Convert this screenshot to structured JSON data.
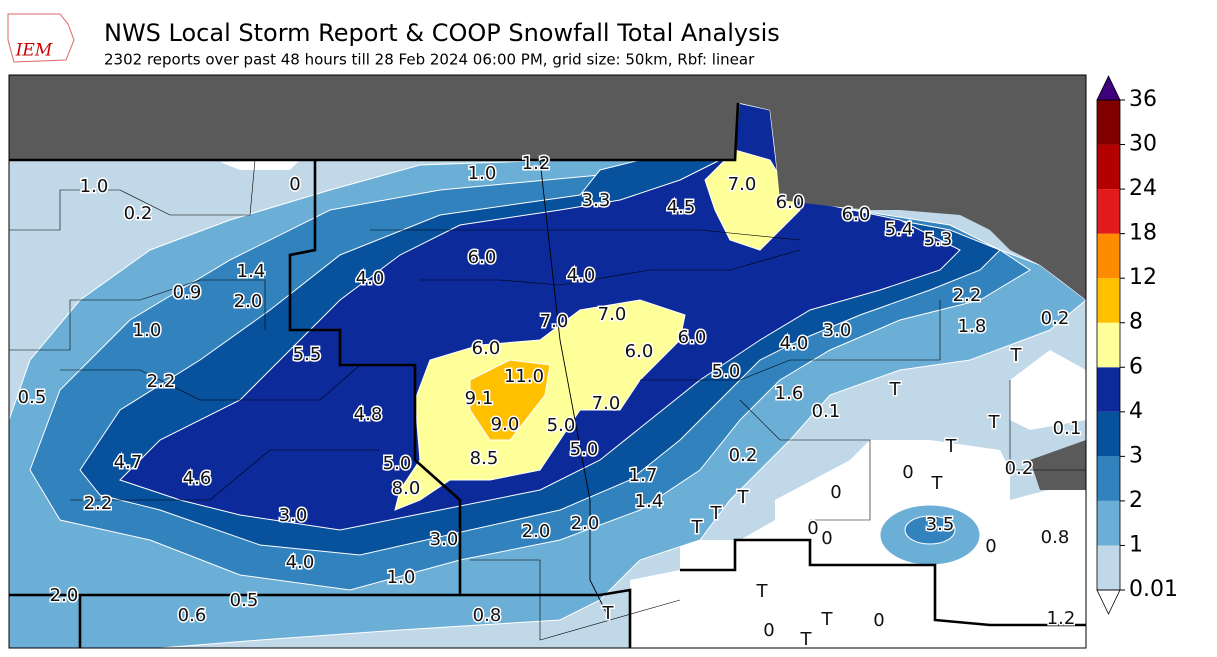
{
  "header": {
    "logo": "IEM",
    "title": "NWS Local Storm Report & COOP Snowfall Total Analysis",
    "subtitle": "2302 reports over past 48 hours till 28 Feb 2024 06:00 PM, grid size: 50km, Rbf: linear"
  },
  "colorbar": {
    "labels": [
      "0.01",
      "1",
      "2",
      "3",
      "4",
      "6",
      "8",
      "12",
      "18",
      "24",
      "30",
      "36"
    ],
    "colors": [
      "#c0d8e8",
      "#6baed6",
      "#3182bd",
      "#08519c",
      "#0c2a9a",
      "#ffff99",
      "#ffc000",
      "#ff8c00",
      "#e31a1c",
      "#b30000",
      "#800000"
    ],
    "under_color": "#ffffff",
    "over_color": "#3f007d"
  },
  "stations": [
    "1.0",
    "0",
    "1.0",
    "1.2",
    "0.2",
    "3.3",
    "4.5",
    "7.0",
    "6.0",
    "6.0",
    "5.4",
    "5.3",
    "1.4",
    "4.0",
    "6.0",
    "4.0",
    "0.9",
    "2.0",
    "2.2",
    "0.2",
    "1.0",
    "7.0",
    "7.0",
    "6.0",
    "3.0",
    "1.8",
    "4.0",
    "5.5",
    "6.0",
    "6.0",
    "T",
    "11.0",
    "5.0",
    "2.2",
    "0.5",
    "9.1",
    "T",
    "1.6",
    "7.0",
    "0.1",
    "4.8",
    "9.0",
    "5.0",
    "T",
    "0.1",
    "T",
    "5.0",
    "0.2",
    "4.7",
    "5.0",
    "8.5",
    "0",
    "0.2",
    "1.7",
    "T",
    "4.6",
    "8.0",
    "0",
    "1.4",
    "T",
    "2.2",
    "3.0",
    "T",
    "2.0",
    "T",
    "2.0",
    "3.5",
    "0",
    "0",
    "3.0",
    "0.8",
    "0",
    "4.0",
    "1.0",
    "T",
    "2.0",
    "0.5",
    "0.6",
    "0.8",
    "T",
    "T",
    "0",
    "1.2",
    "0",
    "T"
  ]
}
